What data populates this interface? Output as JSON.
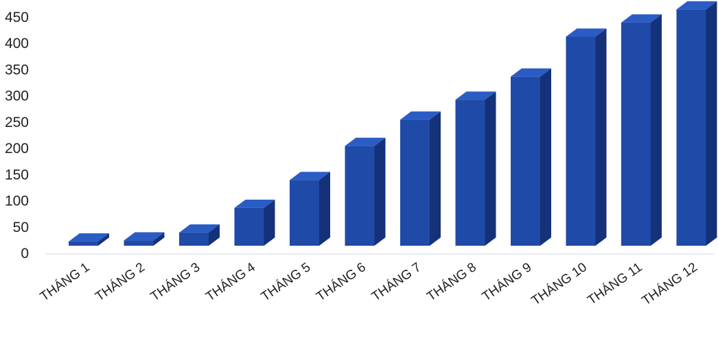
{
  "chart_data": {
    "type": "bar",
    "style": "3d-column",
    "categories": [
      "THÁNG 1",
      "THÁNG 2",
      "THÁNG 3",
      "THÁNG 4",
      "THÁNG 5",
      "THÁNG 6",
      "THÁNG 7",
      "THÁNG 8",
      "THÁNG 9",
      "THÁNG 10",
      "THÁNG 11",
      "THÁNG 12"
    ],
    "values": [
      8,
      10,
      25,
      72,
      125,
      190,
      240,
      278,
      322,
      398,
      425,
      450
    ],
    "yticks": [
      "0",
      "50",
      "100",
      "150",
      "200",
      "250",
      "300",
      "350",
      "400",
      "450"
    ],
    "ylim": [
      0,
      450
    ],
    "title": "",
    "xlabel": "",
    "ylabel": "",
    "grid": false,
    "legend": "none",
    "colors": {
      "front": "#1f4aa8",
      "side": "#14317a",
      "top": "#2a5cc4",
      "axis_text": "#222222"
    }
  }
}
